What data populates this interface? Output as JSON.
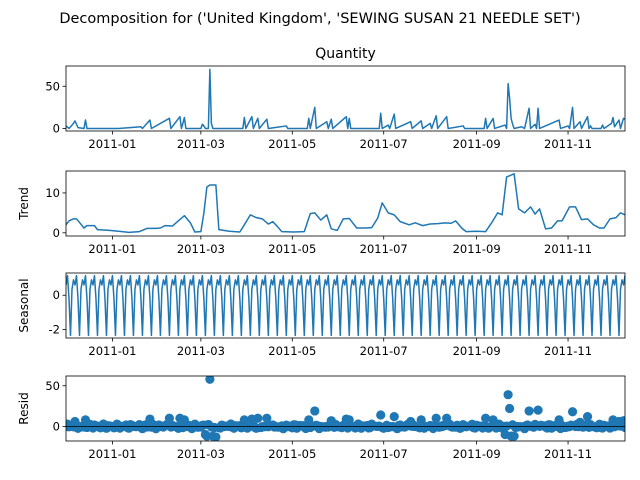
{
  "suptitle": "Decomposition for ('United Kingdom', 'SEWING SUSAN 21 NEEDLE SET')",
  "line_color": "#1f77b4",
  "chart_data": [
    {
      "type": "line",
      "title": "Quantity",
      "ylabel": "",
      "xlim": [
        "2011-12-01",
        "2011-12-09"
      ],
      "x_start": "2010-12-01",
      "x_end": "2011-12-09",
      "ylim": [
        -3,
        74
      ],
      "yticks": [
        0,
        50
      ],
      "xticks": [
        "2011-01",
        "2011-03",
        "2011-05",
        "2011-07",
        "2011-09",
        "2011-11"
      ],
      "points": [
        [
          "2010-12-01",
          3
        ],
        [
          "2010-12-03",
          0
        ],
        [
          "2010-12-06",
          6
        ],
        [
          "2010-12-07",
          9
        ],
        [
          "2010-12-09",
          1
        ],
        [
          "2010-12-13",
          0
        ],
        [
          "2010-12-14",
          10
        ],
        [
          "2010-12-15",
          0
        ],
        [
          "2011-01-05",
          0
        ],
        [
          "2011-01-20",
          2
        ],
        [
          "2011-01-21",
          0
        ],
        [
          "2011-01-26",
          10
        ],
        [
          "2011-01-27",
          0
        ],
        [
          "2011-02-08",
          12
        ],
        [
          "2011-02-09",
          0
        ],
        [
          "2011-02-15",
          14
        ],
        [
          "2011-02-16",
          0
        ],
        [
          "2011-02-17",
          6
        ],
        [
          "2011-02-18",
          13
        ],
        [
          "2011-02-19",
          0
        ],
        [
          "2011-03-01",
          0
        ],
        [
          "2011-03-02",
          5
        ],
        [
          "2011-03-03",
          3
        ],
        [
          "2011-03-04",
          0
        ],
        [
          "2011-03-06",
          0
        ],
        [
          "2011-03-07",
          70
        ],
        [
          "2011-03-08",
          6
        ],
        [
          "2011-03-09",
          0
        ],
        [
          "2011-03-29",
          0
        ],
        [
          "2011-03-30",
          13
        ],
        [
          "2011-03-31",
          0
        ],
        [
          "2011-04-04",
          14
        ],
        [
          "2011-04-05",
          0
        ],
        [
          "2011-04-08",
          12
        ],
        [
          "2011-04-09",
          0
        ],
        [
          "2011-04-14",
          11
        ],
        [
          "2011-04-15",
          0
        ],
        [
          "2011-04-27",
          3
        ],
        [
          "2011-04-28",
          0
        ],
        [
          "2011-05-11",
          0
        ],
        [
          "2011-05-12",
          12
        ],
        [
          "2011-05-13",
          0
        ],
        [
          "2011-05-16",
          25
        ],
        [
          "2011-05-17",
          0
        ],
        [
          "2011-05-24",
          8
        ],
        [
          "2011-05-25",
          0
        ],
        [
          "2011-05-27",
          11
        ],
        [
          "2011-05-28",
          0
        ],
        [
          "2011-06-06",
          14
        ],
        [
          "2011-06-07",
          0
        ],
        [
          "2011-06-08",
          12
        ],
        [
          "2011-06-09",
          0
        ],
        [
          "2011-06-28",
          0
        ],
        [
          "2011-06-29",
          18
        ],
        [
          "2011-06-30",
          0
        ],
        [
          "2011-07-04",
          4
        ],
        [
          "2011-07-05",
          0
        ],
        [
          "2011-07-08",
          17
        ],
        [
          "2011-07-09",
          0
        ],
        [
          "2011-07-19",
          8
        ],
        [
          "2011-07-20",
          0
        ],
        [
          "2011-07-26",
          9
        ],
        [
          "2011-07-27",
          0
        ],
        [
          "2011-08-01",
          6
        ],
        [
          "2011-08-02",
          0
        ],
        [
          "2011-08-05",
          15
        ],
        [
          "2011-08-06",
          0
        ],
        [
          "2011-08-12",
          14
        ],
        [
          "2011-08-13",
          0
        ],
        [
          "2011-08-23",
          3
        ],
        [
          "2011-08-24",
          0
        ],
        [
          "2011-09-06",
          0
        ],
        [
          "2011-09-07",
          12
        ],
        [
          "2011-09-08",
          0
        ],
        [
          "2011-09-12",
          12
        ],
        [
          "2011-09-13",
          0
        ],
        [
          "2011-09-20",
          4
        ],
        [
          "2011-09-21",
          0
        ],
        [
          "2011-09-22",
          53
        ],
        [
          "2011-09-23",
          36
        ],
        [
          "2011-09-24",
          12
        ],
        [
          "2011-09-25",
          5
        ],
        [
          "2011-09-26",
          0
        ],
        [
          "2011-10-01",
          2
        ],
        [
          "2011-10-03",
          0
        ],
        [
          "2011-10-06",
          24
        ],
        [
          "2011-10-07",
          0
        ],
        [
          "2011-10-10",
          5
        ],
        [
          "2011-10-11",
          0
        ],
        [
          "2011-10-12",
          24
        ],
        [
          "2011-10-13",
          0
        ],
        [
          "2011-10-26",
          10
        ],
        [
          "2011-10-27",
          0
        ],
        [
          "2011-11-01",
          3
        ],
        [
          "2011-11-02",
          0
        ],
        [
          "2011-11-04",
          25
        ],
        [
          "2011-11-05",
          0
        ],
        [
          "2011-11-08",
          6
        ],
        [
          "2011-11-09",
          8
        ],
        [
          "2011-11-10",
          0
        ],
        [
          "2011-11-14",
          14
        ],
        [
          "2011-11-15",
          0
        ],
        [
          "2011-11-16",
          3
        ],
        [
          "2011-11-17",
          0
        ],
        [
          "2011-11-23",
          0
        ],
        [
          "2011-11-24",
          4
        ],
        [
          "2011-11-25",
          0
        ],
        [
          "2011-11-30",
          6
        ],
        [
          "2011-12-01",
          13
        ],
        [
          "2011-12-02",
          2
        ],
        [
          "2011-12-05",
          10
        ],
        [
          "2011-12-06",
          0
        ],
        [
          "2011-12-08",
          12
        ],
        [
          "2011-12-09",
          11
        ]
      ]
    },
    {
      "type": "line",
      "title": "",
      "ylabel": "Trend",
      "x_start": "2010-12-01",
      "x_end": "2011-12-09",
      "ylim": [
        -0.8,
        15.5
      ],
      "yticks": [
        0,
        10
      ],
      "xticks": [
        "2011-01",
        "2011-03",
        "2011-05",
        "2011-07",
        "2011-09",
        "2011-11"
      ],
      "points": [
        [
          "2010-12-01",
          2
        ],
        [
          "2010-12-03",
          3
        ],
        [
          "2010-12-06",
          3.5
        ],
        [
          "2010-12-08",
          3.5
        ],
        [
          "2010-12-10",
          2.6
        ],
        [
          "2010-12-13",
          1.2
        ],
        [
          "2010-12-15",
          1.8
        ],
        [
          "2010-12-20",
          1.8
        ],
        [
          "2010-12-22",
          0.8
        ],
        [
          "2010-12-30",
          0.6
        ],
        [
          "2011-01-05",
          0.4
        ],
        [
          "2011-01-12",
          0.1
        ],
        [
          "2011-01-19",
          0.3
        ],
        [
          "2011-01-24",
          1.1
        ],
        [
          "2011-01-30",
          1.1
        ],
        [
          "2011-02-02",
          1.2
        ],
        [
          "2011-02-05",
          1.8
        ],
        [
          "2011-02-10",
          1.7
        ],
        [
          "2011-02-14",
          3
        ],
        [
          "2011-02-18",
          4.3
        ],
        [
          "2011-02-22",
          2.5
        ],
        [
          "2011-02-25",
          0.2
        ],
        [
          "2011-03-01",
          0.3
        ],
        [
          "2011-03-03",
          5
        ],
        [
          "2011-03-05",
          11.5
        ],
        [
          "2011-03-07",
          12
        ],
        [
          "2011-03-11",
          12
        ],
        [
          "2011-03-13",
          0.8
        ],
        [
          "2011-03-20",
          0.4
        ],
        [
          "2011-03-27",
          0.2
        ],
        [
          "2011-03-30",
          2
        ],
        [
          "2011-04-03",
          4.5
        ],
        [
          "2011-04-07",
          3.8
        ],
        [
          "2011-04-11",
          3.5
        ],
        [
          "2011-04-15",
          2.2
        ],
        [
          "2011-04-18",
          2.8
        ],
        [
          "2011-04-21",
          1.6
        ],
        [
          "2011-04-24",
          0.3
        ],
        [
          "2011-05-02",
          0.2
        ],
        [
          "2011-05-09",
          0.3
        ],
        [
          "2011-05-13",
          4.8
        ],
        [
          "2011-05-16",
          5
        ],
        [
          "2011-05-20",
          3.2
        ],
        [
          "2011-05-24",
          4.5
        ],
        [
          "2011-05-27",
          1
        ],
        [
          "2011-05-31",
          0.6
        ],
        [
          "2011-06-04",
          3.5
        ],
        [
          "2011-06-08",
          3.6
        ],
        [
          "2011-06-13",
          1.2
        ],
        [
          "2011-06-19",
          1.2
        ],
        [
          "2011-06-23",
          1.3
        ],
        [
          "2011-06-27",
          3.7
        ],
        [
          "2011-06-30",
          7.5
        ],
        [
          "2011-07-04",
          5
        ],
        [
          "2011-07-08",
          4.5
        ],
        [
          "2011-07-12",
          2.8
        ],
        [
          "2011-07-18",
          2
        ],
        [
          "2011-07-22",
          2.5
        ],
        [
          "2011-07-27",
          1.8
        ],
        [
          "2011-08-01",
          2.2
        ],
        [
          "2011-08-06",
          2.3
        ],
        [
          "2011-08-11",
          2.5
        ],
        [
          "2011-08-15",
          2.4
        ],
        [
          "2011-08-18",
          3
        ],
        [
          "2011-08-22",
          1.2
        ],
        [
          "2011-08-25",
          0.3
        ],
        [
          "2011-09-01",
          0.4
        ],
        [
          "2011-09-07",
          0.3
        ],
        [
          "2011-09-11",
          2.5
        ],
        [
          "2011-09-15",
          5
        ],
        [
          "2011-09-18",
          4.5
        ],
        [
          "2011-09-21",
          14
        ],
        [
          "2011-09-26",
          14.8
        ],
        [
          "2011-09-29",
          6
        ],
        [
          "2011-10-03",
          5
        ],
        [
          "2011-10-07",
          6.5
        ],
        [
          "2011-10-10",
          4.7
        ],
        [
          "2011-10-13",
          6
        ],
        [
          "2011-10-17",
          1
        ],
        [
          "2011-10-21",
          1.2
        ],
        [
          "2011-10-25",
          3
        ],
        [
          "2011-10-28",
          3
        ],
        [
          "2011-11-02",
          6.5
        ],
        [
          "2011-11-06",
          6.5
        ],
        [
          "2011-11-10",
          3.3
        ],
        [
          "2011-11-14",
          3.5
        ],
        [
          "2011-11-18",
          2
        ],
        [
          "2011-11-22",
          1.2
        ],
        [
          "2011-11-25",
          1.2
        ],
        [
          "2011-11-29",
          3.5
        ],
        [
          "2011-12-03",
          3.8
        ],
        [
          "2011-12-06",
          5
        ],
        [
          "2011-12-09",
          4.5
        ]
      ]
    },
    {
      "type": "line",
      "title": "",
      "ylabel": "Seasonal",
      "x_start": "2010-12-01",
      "x_end": "2011-12-09",
      "ylim": [
        -2.5,
        1.3
      ],
      "yticks": [
        -2,
        0
      ],
      "xticks": [
        "2011-01",
        "2011-03",
        "2011-05",
        "2011-07",
        "2011-09",
        "2011-11"
      ],
      "period_days": 6,
      "pattern": [
        0.6,
        1.15,
        -0.2,
        -2.35,
        0.35,
        0.9
      ]
    },
    {
      "type": "scatter",
      "title": "",
      "ylabel": "Resid",
      "x_start": "2010-12-01",
      "x_end": "2011-12-09",
      "ylim": [
        -18,
        62
      ],
      "yticks": [
        0,
        50
      ],
      "xticks": [
        "2011-01",
        "2011-03",
        "2011-05",
        "2011-07",
        "2011-09",
        "2011-11"
      ],
      "baseline_amplitude": 3,
      "outliers": [
        [
          "2010-12-07",
          6
        ],
        [
          "2010-12-14",
          8
        ],
        [
          "2011-01-26",
          9
        ],
        [
          "2011-02-08",
          10
        ],
        [
          "2011-02-15",
          10
        ],
        [
          "2011-02-18",
          8
        ],
        [
          "2011-03-04",
          -10
        ],
        [
          "2011-03-05",
          -12
        ],
        [
          "2011-03-07",
          58
        ],
        [
          "2011-03-09",
          -12
        ],
        [
          "2011-03-11",
          -13
        ],
        [
          "2011-03-30",
          8
        ],
        [
          "2011-04-04",
          9
        ],
        [
          "2011-04-08",
          10
        ],
        [
          "2011-04-14",
          10
        ],
        [
          "2011-05-12",
          8
        ],
        [
          "2011-05-16",
          19
        ],
        [
          "2011-05-27",
          7
        ],
        [
          "2011-06-06",
          9
        ],
        [
          "2011-06-08",
          8
        ],
        [
          "2011-06-29",
          14
        ],
        [
          "2011-07-08",
          12
        ],
        [
          "2011-07-19",
          6
        ],
        [
          "2011-07-26",
          8
        ],
        [
          "2011-08-05",
          10
        ],
        [
          "2011-08-12",
          10
        ],
        [
          "2011-09-07",
          10
        ],
        [
          "2011-09-12",
          8
        ],
        [
          "2011-09-20",
          -10
        ],
        [
          "2011-09-22",
          39
        ],
        [
          "2011-09-23",
          22
        ],
        [
          "2011-09-24",
          -12
        ],
        [
          "2011-09-26",
          -12
        ],
        [
          "2011-10-06",
          19
        ],
        [
          "2011-10-12",
          20
        ],
        [
          "2011-10-26",
          8
        ],
        [
          "2011-11-04",
          18
        ],
        [
          "2011-11-09",
          5
        ],
        [
          "2011-11-14",
          12
        ],
        [
          "2011-12-01",
          8
        ],
        [
          "2011-12-05",
          6
        ],
        [
          "2011-12-08",
          7
        ]
      ]
    }
  ]
}
